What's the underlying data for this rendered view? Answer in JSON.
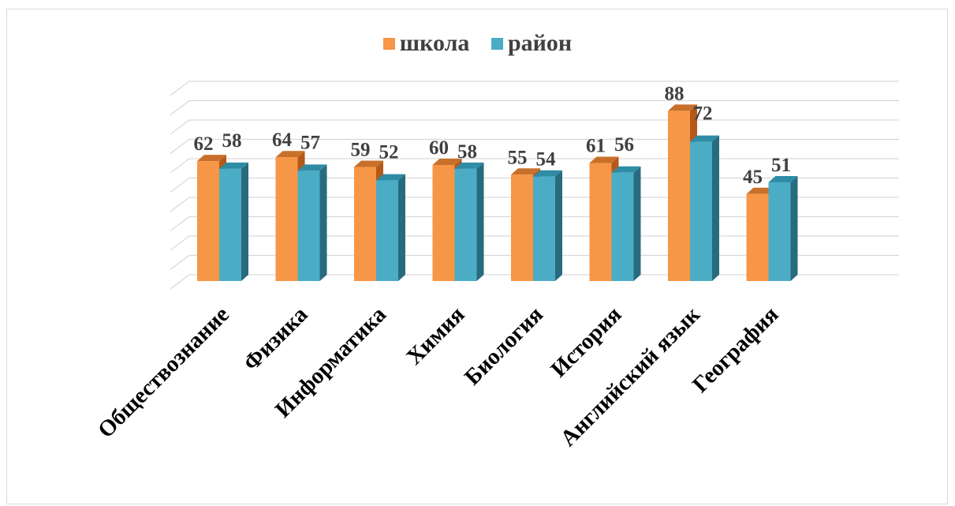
{
  "colors": {
    "school": "#F79646",
    "school_top": "#C8702A",
    "school_side": "#B35A1B",
    "district": "#4BACC6",
    "district_top": "#2F8CA6",
    "district_side": "#286B7E",
    "grid": "#d9d9d9"
  },
  "chart_data": {
    "type": "bar",
    "style": "3d-clustered-column",
    "categories": [
      "Обществознание",
      "Физика",
      "Информатика",
      "Химия",
      "Биология",
      "История",
      "Английский язык",
      "География"
    ],
    "series": [
      {
        "name": "школа",
        "values": [
          62,
          64,
          59,
          60,
          55,
          61,
          88,
          45
        ]
      },
      {
        "name": "район",
        "values": [
          58,
          57,
          52,
          58,
          54,
          56,
          72,
          51
        ]
      }
    ],
    "ylim": [
      0,
      100
    ],
    "y_gridlines": 10,
    "grid": true,
    "y_axis_labels_shown": false,
    "data_labels": true,
    "legend_position": "top-center"
  }
}
